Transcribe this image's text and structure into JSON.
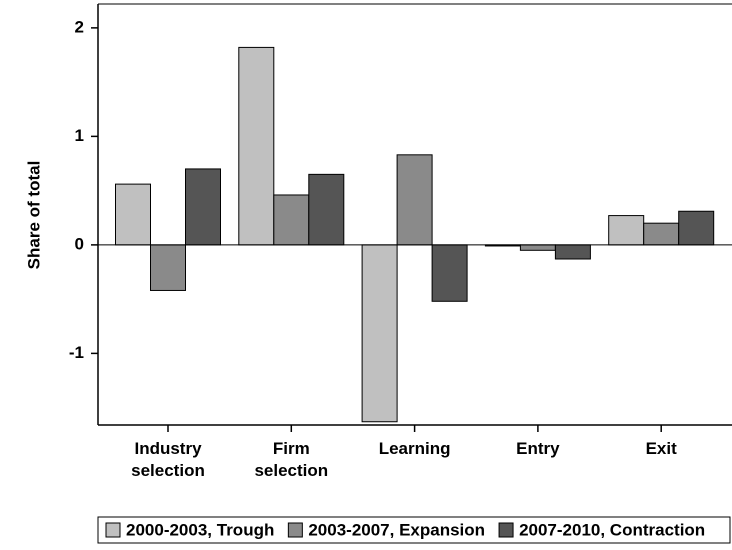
{
  "chart_data": {
    "type": "bar",
    "y_label": "Share of total",
    "categories": [
      "Industry selection",
      "Firm selection",
      "Learning",
      "Entry",
      "Exit"
    ],
    "series": [
      {
        "name": "2000-2003, Trough",
        "color": "#c0c0c0",
        "values": [
          0.56,
          1.82,
          -1.63,
          -0.01,
          0.27
        ]
      },
      {
        "name": "2003-2007, Expansion",
        "color": "#8a8a8a",
        "values": [
          -0.42,
          0.46,
          0.83,
          -0.05,
          0.2
        ]
      },
      {
        "name": "2007-2010, Contraction",
        "color": "#555555",
        "values": [
          0.7,
          0.65,
          -0.52,
          -0.13,
          0.31
        ]
      }
    ],
    "ylim": [
      -1.66,
      2.22
    ],
    "yticks": [
      -1,
      0,
      1,
      2
    ]
  }
}
